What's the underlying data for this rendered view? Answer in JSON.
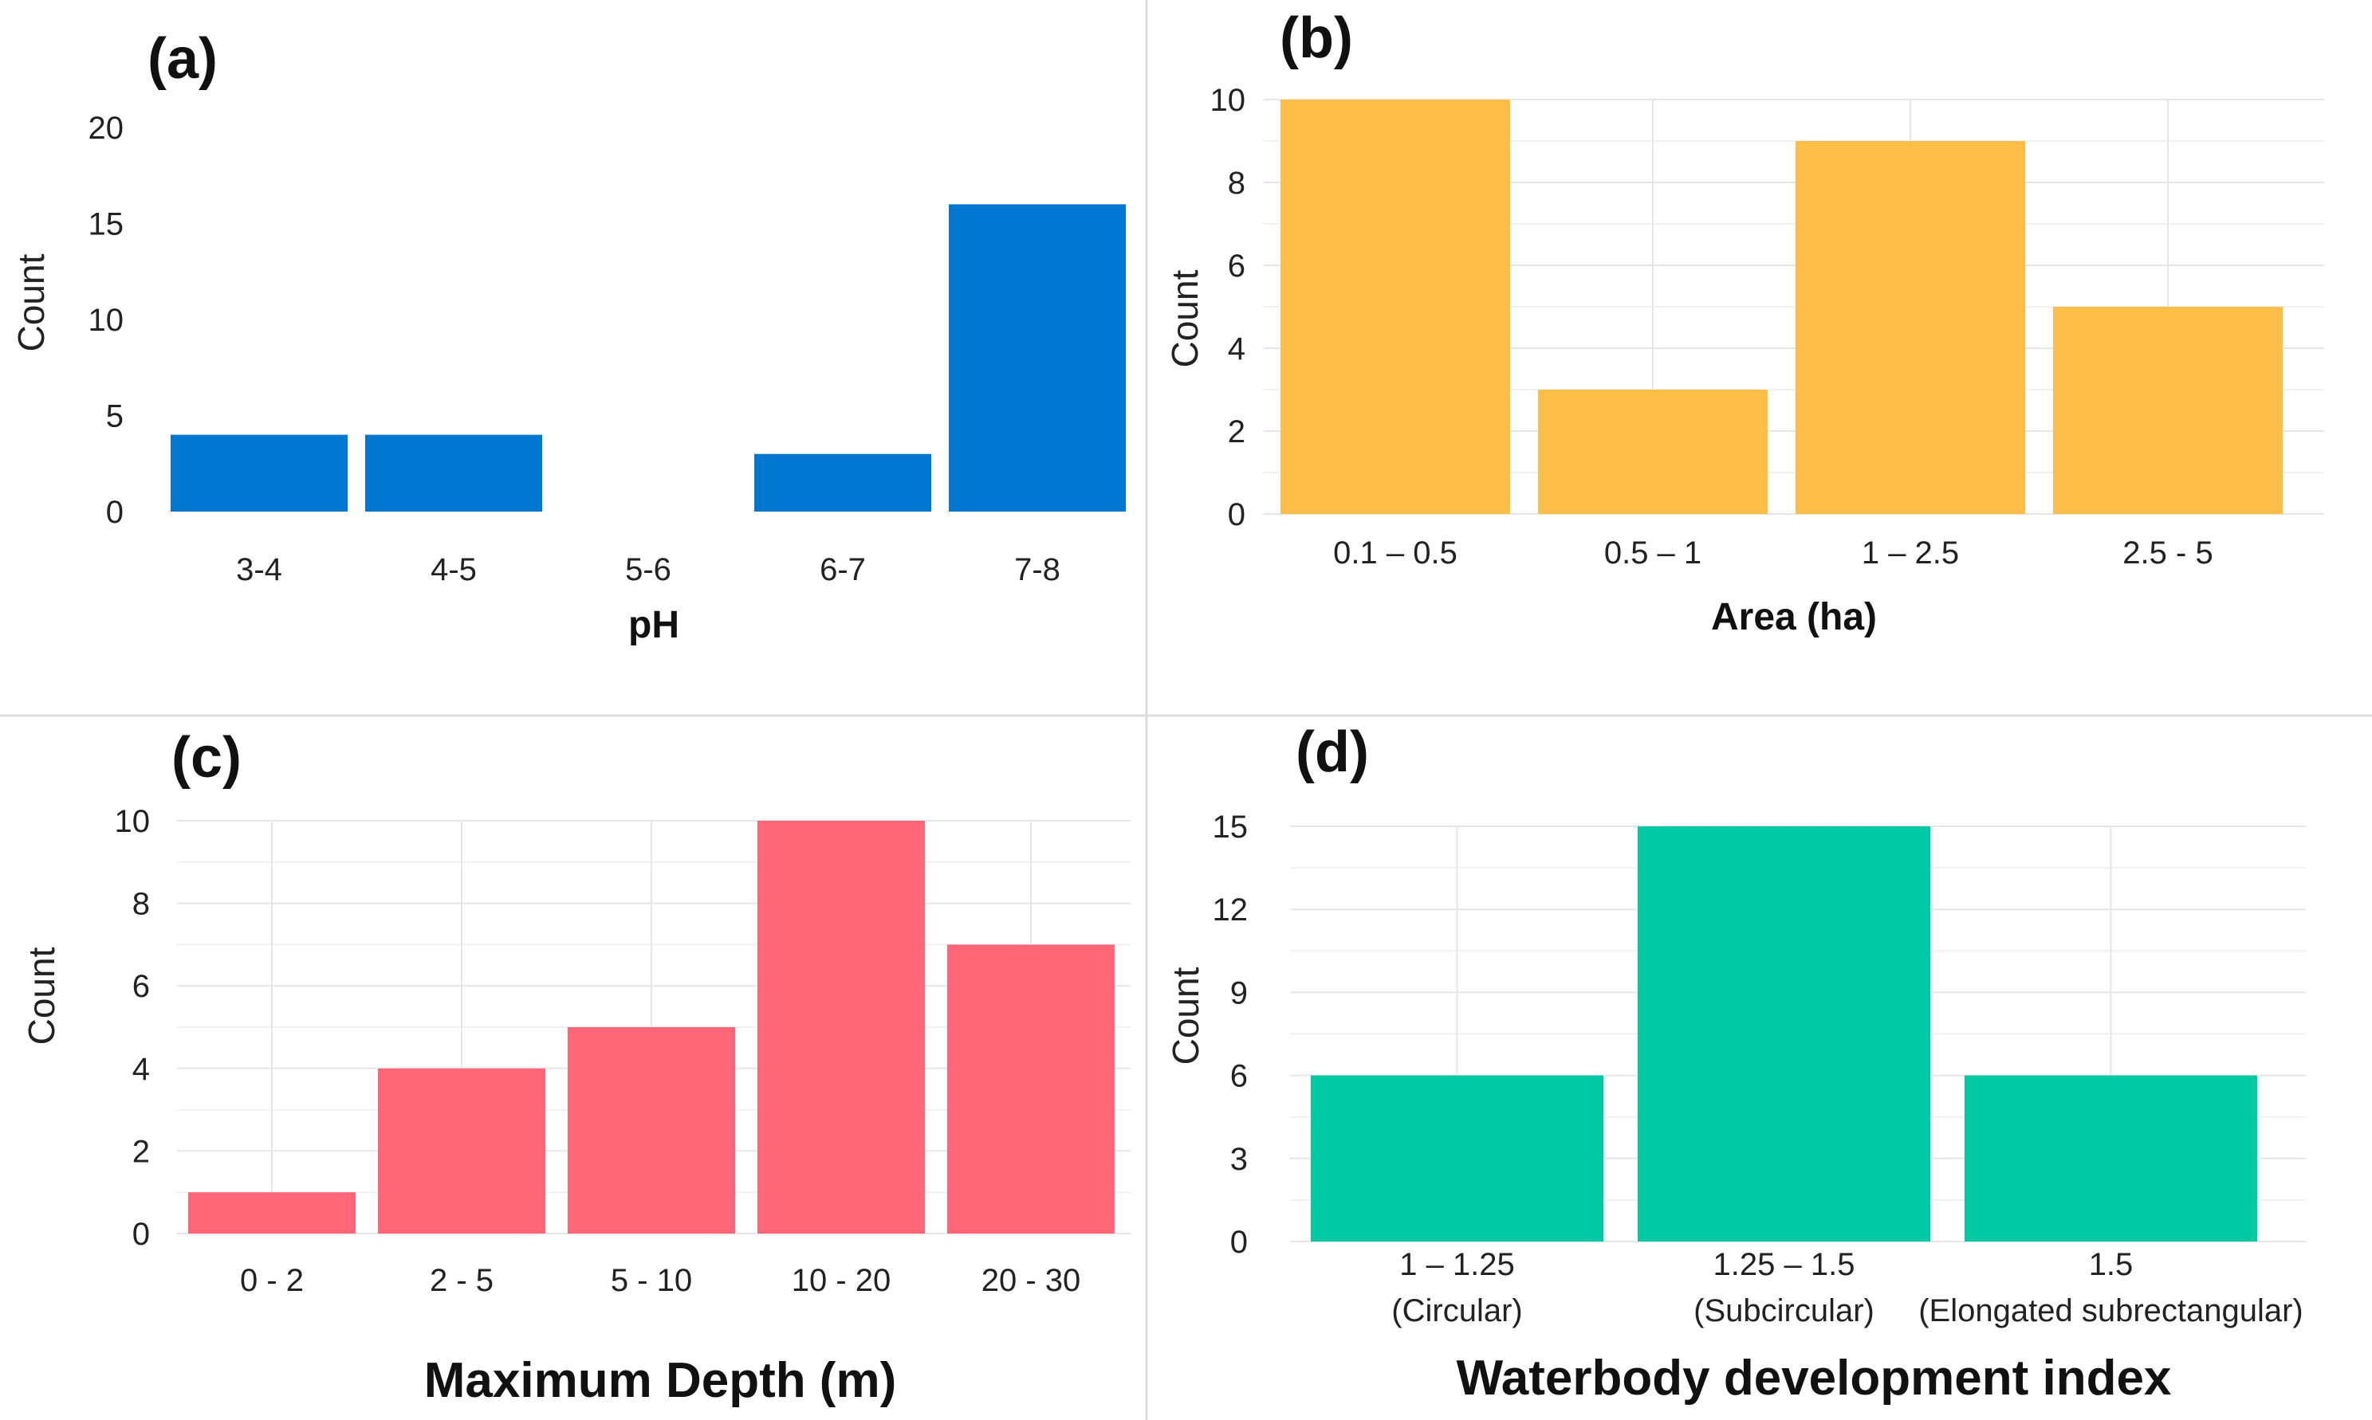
{
  "chart_data": [
    {
      "panel": "(a)",
      "type": "bar",
      "categories": [
        "3-4",
        "4-5",
        "5-6",
        "6-7",
        "7-8"
      ],
      "values": [
        4,
        4,
        0,
        3,
        16
      ],
      "xlabel": "pH",
      "ylabel": "Count",
      "ylim": [
        0,
        20
      ],
      "yticks": [
        "0",
        "5",
        "10",
        "15",
        "20"
      ],
      "color": "#0077D0",
      "grid": false
    },
    {
      "panel": "(b)",
      "type": "bar",
      "categories": [
        "0.1 – 0.5",
        "0.5 – 1",
        "1 – 2.5",
        "2.5 - 5"
      ],
      "values": [
        10,
        3,
        9,
        5
      ],
      "xlabel": "Area (ha)",
      "ylabel": "Count",
      "ylim": [
        0,
        10
      ],
      "yticks": [
        "0",
        "2",
        "4",
        "6",
        "8",
        "10"
      ],
      "color": "#FDBE48",
      "grid": true
    },
    {
      "panel": "(c)",
      "type": "bar",
      "categories": [
        "0 - 2",
        "2 - 5",
        "5 - 10",
        "10 - 20",
        "20 - 30"
      ],
      "values": [
        1,
        4,
        5,
        10,
        7
      ],
      "xlabel": "Maximum Depth (m)",
      "ylabel": "Count",
      "ylim": [
        0,
        10
      ],
      "yticks": [
        "0",
        "2",
        "4",
        "6",
        "8",
        "10"
      ],
      "color": "#FF6779",
      "grid": true
    },
    {
      "panel": "(d)",
      "type": "bar",
      "categories": [
        "1 – 1.25",
        "1.25 – 1.5",
        "1.5"
      ],
      "category_sublabels": [
        "(Circular)",
        "(Subcircular)",
        "(Elongated subrectangular)"
      ],
      "values": [
        6,
        15,
        6
      ],
      "xlabel": "Waterbody development index",
      "ylabel": "Count",
      "ylim": [
        0,
        15
      ],
      "yticks": [
        "0",
        "3",
        "6",
        "9",
        "12",
        "15"
      ],
      "color": "#00C9A4",
      "grid": true
    }
  ]
}
